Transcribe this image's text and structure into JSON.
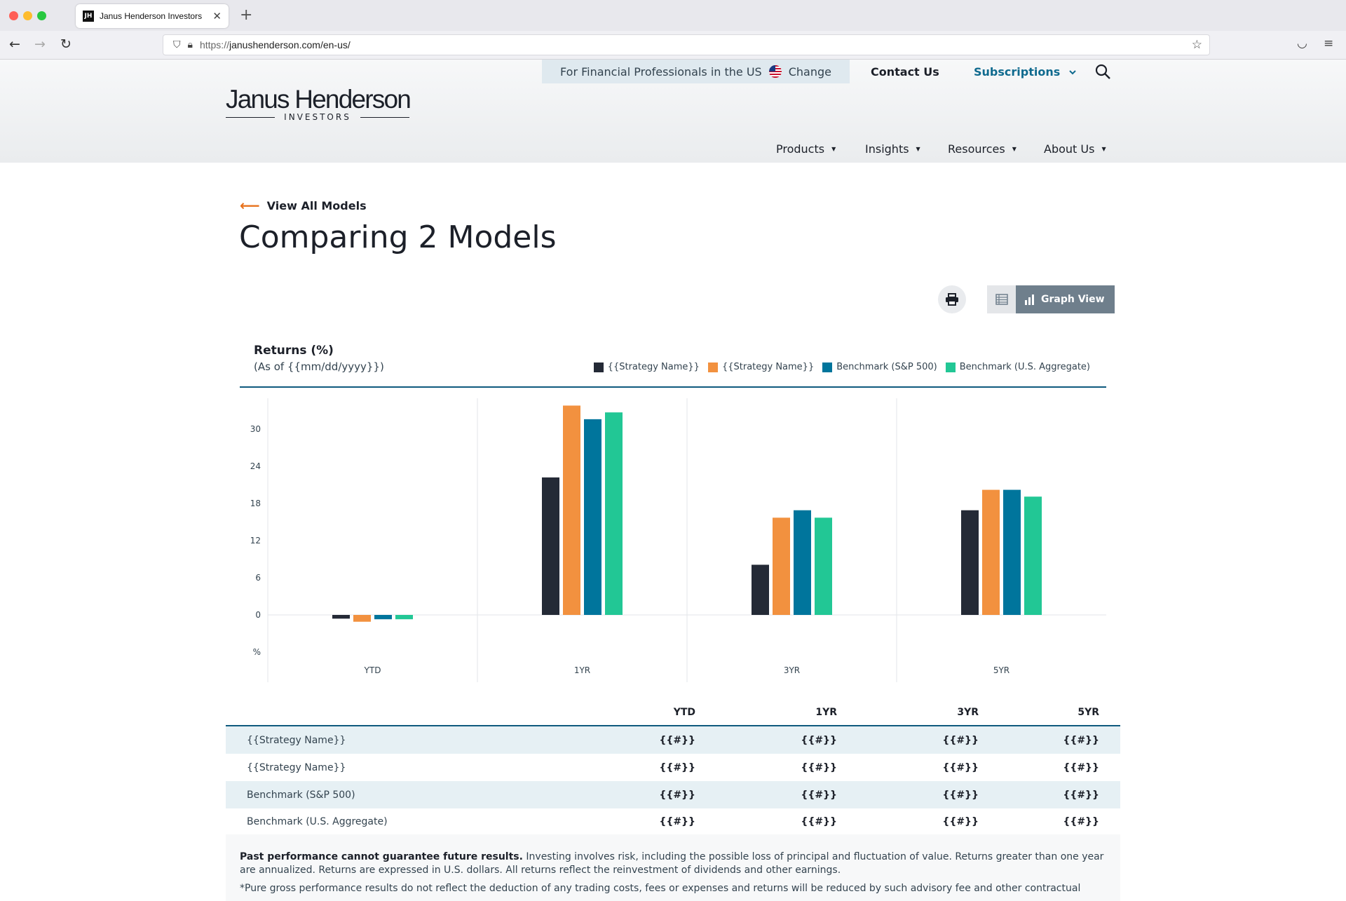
{
  "browser": {
    "tab_title": "Janus Henderson Investors",
    "url_prefix": "https://",
    "url_host": "janushenderson.com/en-us/"
  },
  "header": {
    "region_text": "For Financial Professionals in the US",
    "change_label": "Change",
    "contact_label": "Contact Us",
    "subscriptions_label": "Subscriptions",
    "logo_main": "Janus Henderson",
    "logo_sub": "INVESTORS",
    "nav": [
      "Products",
      "Insights",
      "Resources",
      "About Us"
    ]
  },
  "page": {
    "back_label": "View All Models",
    "title": "Comparing 2 Models",
    "graph_view_label": "Graph View"
  },
  "chart_data": {
    "type": "bar",
    "title": "Returns (%)",
    "subtitle": "(As of {{mm/dd/yyyy}})",
    "categories": [
      "YTD",
      "1YR",
      "3YR",
      "5YR"
    ],
    "y_ticks": [
      "30",
      "24",
      "18",
      "12",
      "6",
      "0",
      "%"
    ],
    "ylim": [
      -6,
      34
    ],
    "legend_position": "top-right",
    "series": [
      {
        "name": "{{Strategy Name}}",
        "color": "#242a36",
        "values": [
          -0.6,
          22.2,
          8.1,
          16.9
        ]
      },
      {
        "name": "{{Strategy Name}}",
        "color": "#f2913f",
        "values": [
          -1.1,
          33.8,
          15.7,
          20.2
        ]
      },
      {
        "name": "Benchmark (S&P 500)",
        "color": "#00759c",
        "values": [
          -0.7,
          31.6,
          16.9,
          20.2
        ]
      },
      {
        "name": "Benchmark (U.S. Aggregate)",
        "color": "#22c795",
        "values": [
          -0.7,
          32.7,
          15.7,
          19.1
        ]
      }
    ]
  },
  "table": {
    "headers": [
      "YTD",
      "1YR",
      "3YR",
      "5YR"
    ],
    "rows": [
      {
        "name": "{{Strategy Name}}",
        "values": [
          "{{#}}",
          "{{#}}",
          "{{#}}",
          "{{#}}"
        ]
      },
      {
        "name": "{{Strategy Name}}",
        "values": [
          "{{#}}",
          "{{#}}",
          "{{#}}",
          "{{#}}"
        ]
      },
      {
        "name": "Benchmark (S&P 500)",
        "values": [
          "{{#}}",
          "{{#}}",
          "{{#}}",
          "{{#}}"
        ]
      },
      {
        "name": "Benchmark (U.S. Aggregate)",
        "values": [
          "{{#}}",
          "{{#}}",
          "{{#}}",
          "{{#}}"
        ]
      }
    ]
  },
  "disclosure": {
    "bold": "Past performance cannot guarantee future results.",
    "text": " Investing involves risk, including the possible loss of principal and fluctuation of value. Returns greater than one year are annualized. Returns are expressed in U.S. dollars. All returns reflect the reinvestment of dividends and other earnings.",
    "note": "*Pure gross performance results do not reflect the deduction of any trading costs, fees or expenses and returns will be reduced by such advisory fee and other contractual"
  }
}
